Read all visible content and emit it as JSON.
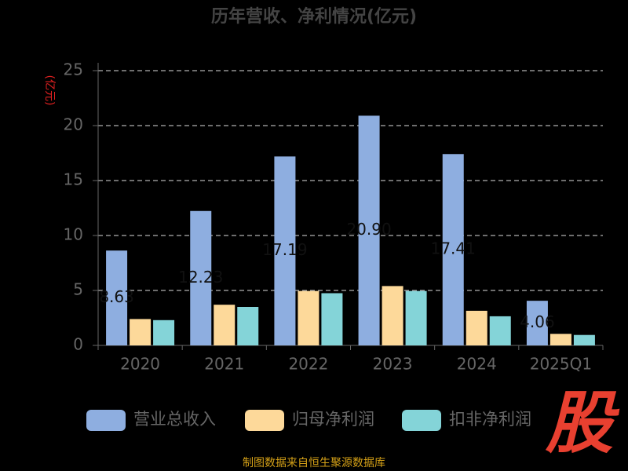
{
  "chart_data": {
    "type": "bar",
    "title": "历年营收、净利情况(亿元)",
    "y_label": "(亿元)",
    "categories": [
      "2020",
      "2021",
      "2022",
      "2023",
      "2024",
      "2025Q1"
    ],
    "series": [
      {
        "name": "营业总收入",
        "color": "#8eaee0",
        "values": [
          8.63,
          12.23,
          17.19,
          20.9,
          17.41,
          4.06
        ],
        "labels": true
      },
      {
        "name": "归母净利润",
        "color": "#fdd99a",
        "values": [
          2.4,
          3.7,
          4.95,
          5.4,
          3.15,
          1.05
        ]
      },
      {
        "name": "扣非净利润",
        "color": "#84d4d8",
        "values": [
          2.3,
          3.5,
          4.75,
          4.95,
          2.65,
          0.95
        ]
      }
    ],
    "value_labels": [
      "8.63",
      "12.23",
      "17.19",
      "20.90",
      "17.41",
      "4.06"
    ],
    "ylim": [
      0,
      25
    ],
    "yticks": [
      0,
      5,
      10,
      15,
      20,
      25
    ],
    "grid": true,
    "legend": "bottom",
    "source": "制图数据来自恒生聚源数据库",
    "logo": "股"
  }
}
